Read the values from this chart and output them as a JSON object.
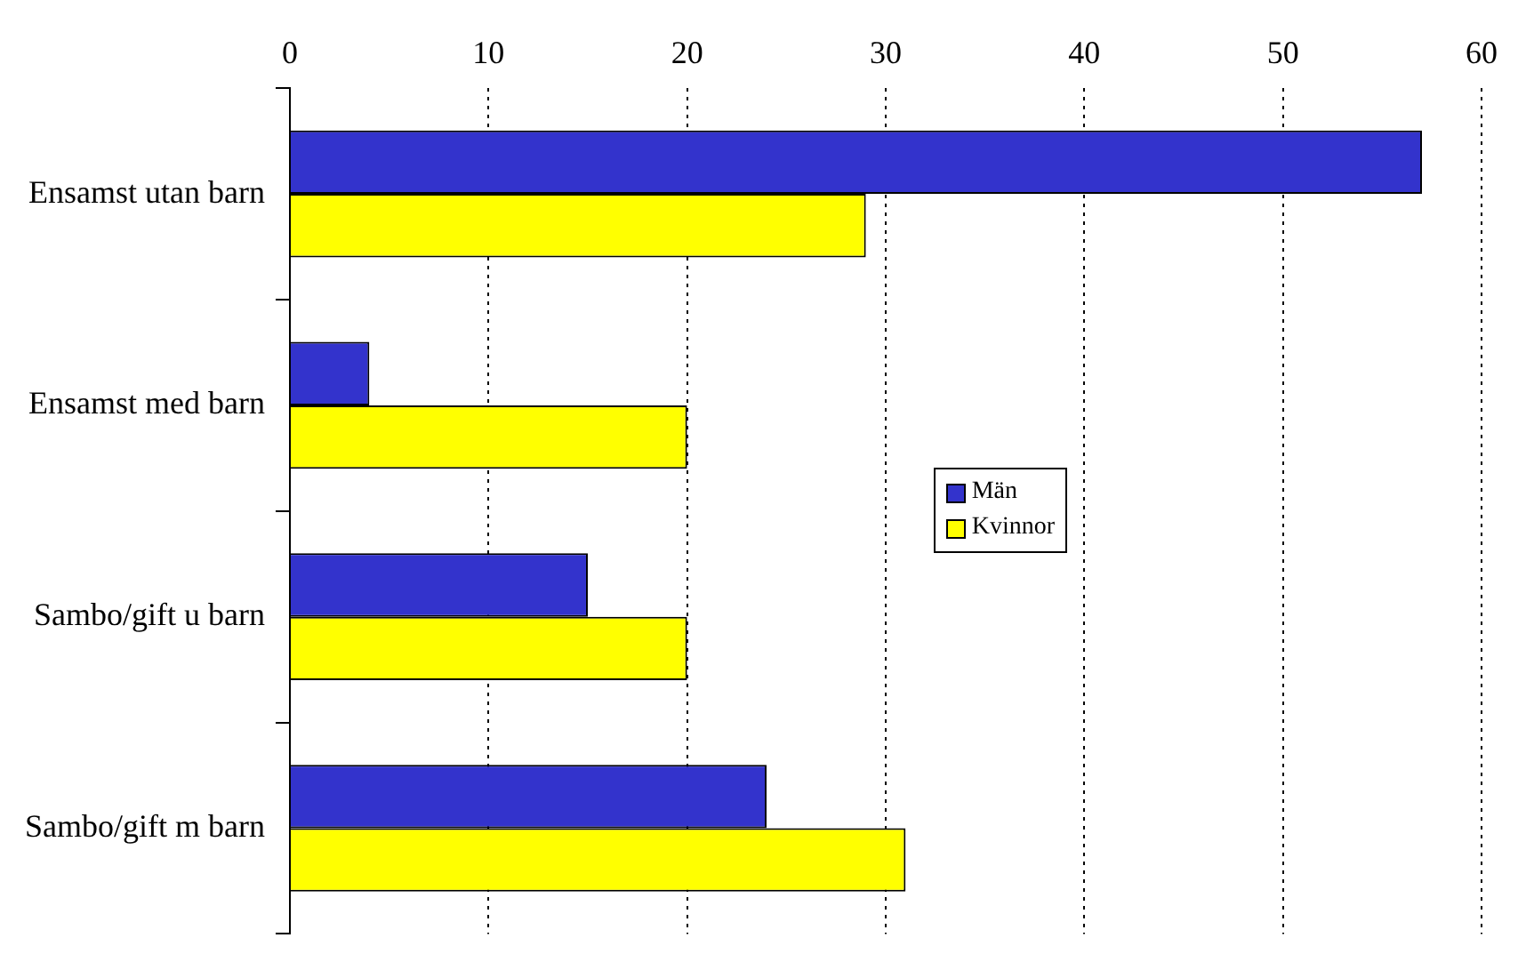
{
  "chart_data": {
    "type": "bar",
    "orientation": "horizontal",
    "categories": [
      "Ensamst utan barn",
      "Ensamst med barn",
      "Sambo/gift u barn",
      "Sambo/gift m barn"
    ],
    "series": [
      {
        "name": "Män",
        "color": "#3333cc",
        "values": [
          57,
          4,
          15,
          24
        ]
      },
      {
        "name": "Kvinnor",
        "color": "#ffff00",
        "values": [
          29,
          20,
          20,
          31
        ]
      }
    ],
    "xlim": [
      0,
      60
    ],
    "xticks": [
      0,
      10,
      20,
      30,
      40,
      50,
      60
    ],
    "grid": "x",
    "legend": "right"
  }
}
